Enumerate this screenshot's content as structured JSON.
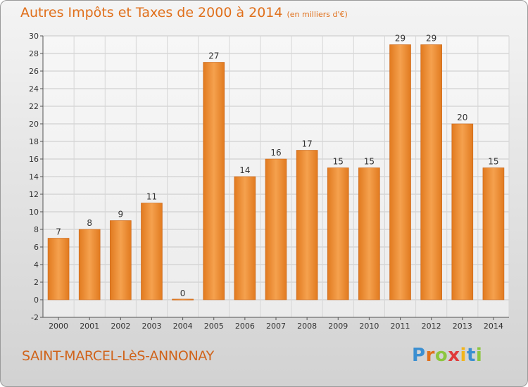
{
  "header": {
    "title": "Autres Impôts et Taxes de 2000 à 2014",
    "subtitle": "(en milliers d'€)"
  },
  "footer": {
    "commune": "SAINT-MARCEL-LèS-ANNONAY",
    "brand_letters": [
      "P",
      "r",
      "o",
      "x",
      "i",
      "t",
      "i"
    ],
    "brand_colors": [
      "#3b8fd1",
      "#e0701c",
      "#8cc63f",
      "#e03b3b",
      "#f2b51c",
      "#3b8fd1",
      "#8cc63f"
    ]
  },
  "chart_data": {
    "type": "bar",
    "categories": [
      "2000",
      "2001",
      "2002",
      "2003",
      "2004",
      "2005",
      "2006",
      "2007",
      "2008",
      "2009",
      "2010",
      "2011",
      "2012",
      "2013",
      "2014"
    ],
    "values": [
      7,
      8,
      9,
      11,
      0,
      27,
      14,
      16,
      17,
      15,
      15,
      29,
      29,
      20,
      15
    ],
    "value_labels": [
      "7",
      "8",
      "9",
      "11",
      "0",
      "27",
      "14",
      "16",
      "17",
      "15",
      "15",
      "29",
      "29",
      "20",
      "15"
    ],
    "ylim": [
      -2,
      30
    ],
    "yticks": [
      -2,
      0,
      2,
      4,
      6,
      8,
      10,
      12,
      14,
      16,
      18,
      20,
      22,
      24,
      26,
      28,
      30
    ],
    "ytick_labels": [
      "-2",
      "0",
      "2",
      "4",
      "6",
      "8",
      "10",
      "12",
      "14",
      "16",
      "18",
      "20",
      "22",
      "24",
      "26",
      "28",
      "30"
    ],
    "grid": true,
    "bar_color": "#f0923a"
  }
}
